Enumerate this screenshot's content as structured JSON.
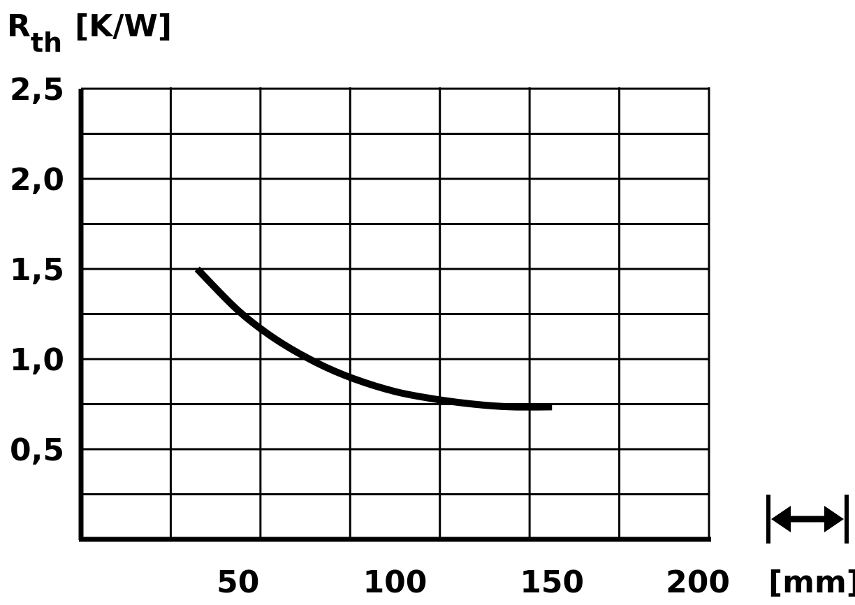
{
  "chart_data": {
    "type": "line",
    "ylabel_main": "R",
    "ylabel_sub": "th",
    "ylabel_unit": "[K/W]",
    "xlabel_unit": "[mm]",
    "x_ticks": [
      "50",
      "100",
      "150",
      "200"
    ],
    "y_ticks": [
      "0,5",
      "1,0",
      "1,5",
      "2,0",
      "2,5"
    ],
    "xlim": [
      0,
      200
    ],
    "ylim": [
      0,
      2.5
    ],
    "grid": true,
    "series": [
      {
        "x": [
          37,
          50,
          62,
          75,
          87,
          100,
          112,
          125,
          137,
          150
        ],
        "y": [
          1.5,
          1.27,
          1.11,
          0.98,
          0.89,
          0.82,
          0.78,
          0.75,
          0.735,
          0.735
        ],
        "color": "#000000"
      }
    ],
    "icon": "length-arrow-icon"
  }
}
